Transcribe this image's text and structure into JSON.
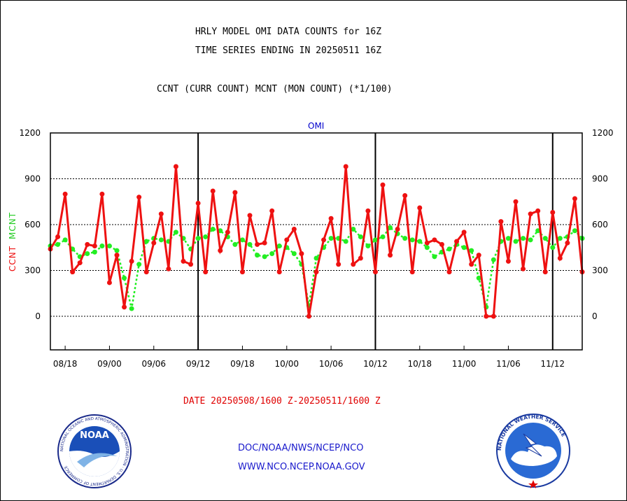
{
  "header": {
    "title_line1": "HRLY MODEL OMI DATA COUNTS for 16Z",
    "title_line2": "TIME SERIES ENDING IN 20250511 16Z",
    "subtitle": "CCNT (CURR COUNT) MCNT (MON COUNT) (*1/100)"
  },
  "panel_label": "OMI",
  "y_axis_labels": {
    "ccnt": "CCNT",
    "mcnt": "MCNT"
  },
  "date_line": "DATE 20250508/1600 Z-20250511/1600 Z",
  "footer": {
    "line1": "DOC/NOAA/NWS/NCEP/NCO",
    "line2": "WWW.NCO.NCEP.NOAA.GOV"
  },
  "logos": {
    "left": {
      "name": "NOAA",
      "ring_text": "NATIONAL OCEANIC AND ATMOSPHERIC ADMINISTRATION · U.S. DEPARTMENT OF COMMERCE"
    },
    "right": {
      "name": "NATIONAL WEATHER SERVICE"
    }
  },
  "colors": {
    "ccnt": "#ee1111",
    "mcnt": "#22ee22",
    "axis": "#000000",
    "title": "#000000",
    "footer": "#1a1acc",
    "date": "#e00000"
  },
  "chart_data": {
    "type": "line",
    "title": "HRLY MODEL OMI DATA COUNTS for 16Z",
    "xlabel": "DATE 20250508/1600 Z-20250511/1600 Z",
    "ylabel": "CCNT MCNT",
    "ylim": [
      -220,
      1200
    ],
    "yticks": [
      0,
      300,
      600,
      900,
      1200
    ],
    "x_tick_labels": [
      "08/18",
      "09/00",
      "09/06",
      "09/12",
      "09/18",
      "10/00",
      "10/06",
      "10/12",
      "10/18",
      "11/00",
      "11/06",
      "11/12"
    ],
    "grid": true,
    "series": [
      {
        "name": "CCNT",
        "values": [
          440,
          520,
          800,
          290,
          350,
          470,
          460,
          800,
          220,
          400,
          60,
          360,
          780,
          290,
          480,
          670,
          310,
          980,
          360,
          340,
          740,
          290,
          820,
          430,
          550,
          810,
          290,
          660,
          470,
          480,
          690,
          290,
          500,
          570,
          410,
          0,
          290,
          500,
          640,
          340,
          980,
          340,
          380,
          690,
          290,
          860,
          400,
          570,
          790,
          290,
          710,
          480,
          500,
          470,
          290,
          490,
          550,
          340,
          400,
          0,
          0,
          620,
          360,
          750,
          310,
          670,
          690,
          290,
          680,
          380,
          480,
          770,
          290
        ]
      },
      {
        "name": "MCNT",
        "values": [
          460,
          470,
          500,
          440,
          390,
          410,
          420,
          460,
          460,
          430,
          250,
          50,
          340,
          490,
          510,
          500,
          490,
          550,
          510,
          440,
          510,
          520,
          570,
          560,
          520,
          470,
          500,
          470,
          400,
          390,
          410,
          460,
          450,
          410,
          340,
          70,
          380,
          450,
          510,
          510,
          490,
          570,
          520,
          460,
          500,
          520,
          580,
          540,
          510,
          500,
          490,
          450,
          390,
          420,
          440,
          470,
          450,
          430,
          250,
          60,
          370,
          490,
          510,
          490,
          510,
          500,
          560,
          510,
          450,
          510,
          520,
          560,
          510
        ]
      }
    ]
  }
}
